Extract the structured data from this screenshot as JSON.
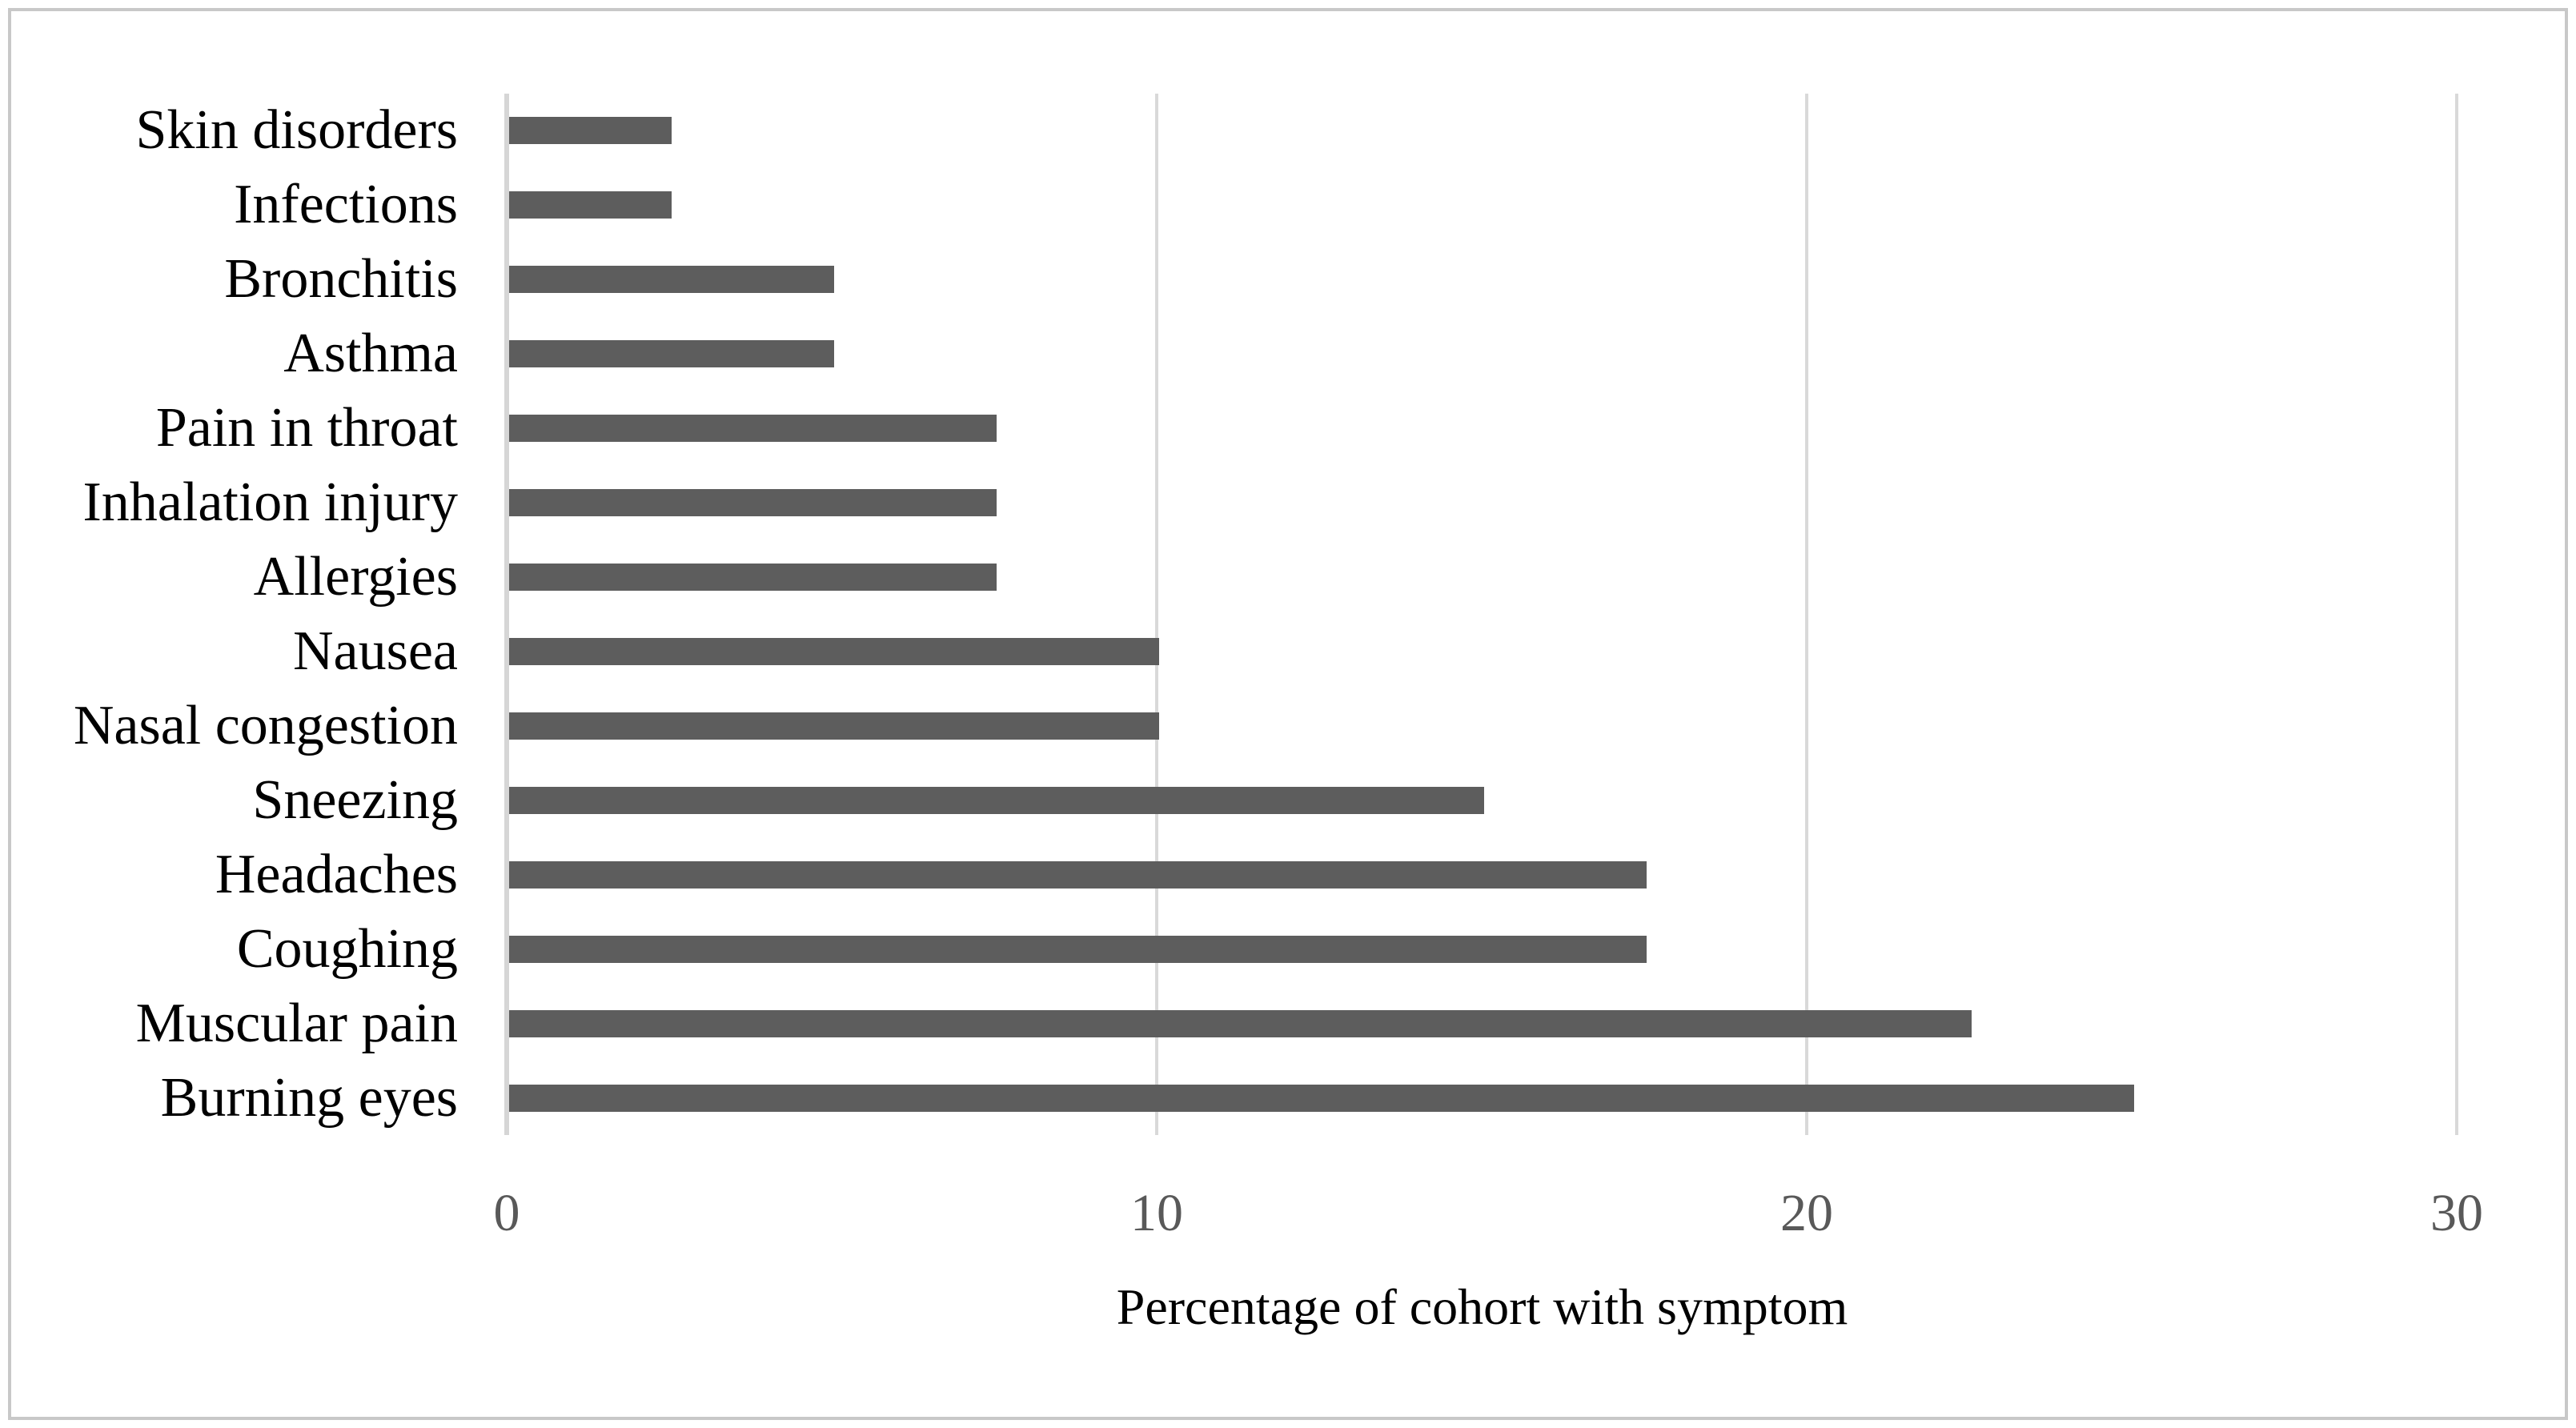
{
  "chart_data": {
    "type": "bar",
    "orientation": "horizontal",
    "title": "",
    "xlabel": "Percentage of cohort with symptom",
    "ylabel": "",
    "categories": [
      "Skin disorders",
      "Infections",
      "Bronchitis",
      "Asthma",
      "Pain in throat",
      "Inhalation injury",
      "Allergies",
      "Nausea",
      "Nasal congestion",
      "Sneezing",
      "Headaches",
      "Coughing",
      "Muscular pain",
      "Burning eyes"
    ],
    "values": [
      2.5,
      2.5,
      5,
      5,
      7.5,
      7.5,
      7.5,
      10,
      10,
      15,
      17.5,
      17.5,
      22.5,
      25
    ],
    "xlim": [
      0,
      30
    ],
    "xticks": [
      0,
      10,
      20,
      30
    ],
    "grid": "vertical-gridlines",
    "legend": "none",
    "colors": {
      "bar": "#5d5d5d",
      "gridline": "#d9d9d9",
      "axis_line": "#d6d6d6",
      "tick_label": "#595959",
      "category_label": "#000000",
      "axis_title": "#000000",
      "frame_border": "#c8c8c8",
      "background": "#ffffff"
    }
  }
}
